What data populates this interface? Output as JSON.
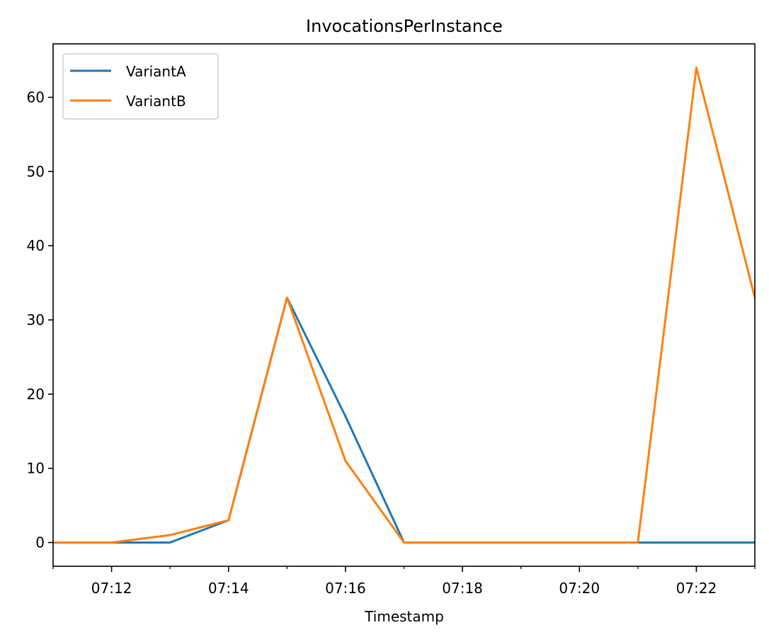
{
  "chart_data": {
    "type": "line",
    "title": "InvocationsPerInstance",
    "xlabel": "Timestamp",
    "ylabel": "",
    "x": [
      "07:11",
      "07:12",
      "07:13",
      "07:14",
      "07:15",
      "07:16",
      "07:17",
      "07:18",
      "07:19",
      "07:20",
      "07:21",
      "07:22",
      "07:23"
    ],
    "xlim": [
      "07:11",
      "07:23"
    ],
    "x_tick_labels": [
      "07:12",
      "07:14",
      "07:16",
      "07:18",
      "07:20",
      "07:22"
    ],
    "ylim": [
      -3.2,
      67.2
    ],
    "y_ticks": [
      0,
      10,
      20,
      30,
      40,
      50,
      60
    ],
    "grid": false,
    "legend_position": "top-left",
    "series": [
      {
        "name": "VariantA",
        "color": "#1f77b4",
        "values": [
          0,
          0,
          0,
          3,
          33,
          17,
          0,
          0,
          0,
          0,
          0,
          0,
          0
        ]
      },
      {
        "name": "VariantB",
        "color": "#ff7f0e",
        "values": [
          0,
          0,
          1,
          3,
          33,
          11,
          0,
          0,
          0,
          0,
          0,
          64,
          33
        ]
      }
    ]
  }
}
